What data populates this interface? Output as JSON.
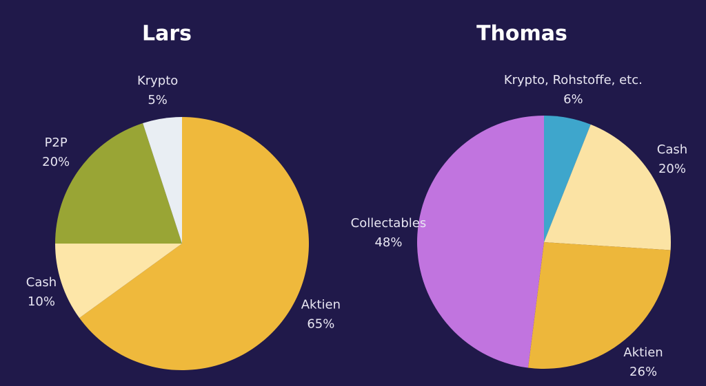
{
  "chart_data": [
    {
      "type": "pie",
      "title": "Lars",
      "categories": [
        "Aktien",
        "Cash",
        "P2P",
        "Krypto"
      ],
      "values": [
        65,
        10,
        20,
        5
      ],
      "value_labels": [
        "65%",
        "10%",
        "20%",
        "5%"
      ],
      "colors": [
        "#efb93c",
        "#fde6a8",
        "#99a535",
        "#e9eef3"
      ]
    },
    {
      "type": "pie",
      "title": "Thomas",
      "categories": [
        "Krypto, Rohstoffe, etc.",
        "Cash",
        "Aktien",
        "Collectables"
      ],
      "values": [
        6,
        20,
        26,
        48
      ],
      "value_labels": [
        "6%",
        "20%",
        "26%",
        "48%"
      ],
      "colors": [
        "#3ea6cc",
        "#fbe3a4",
        "#edb73b",
        "#c174df"
      ]
    }
  ]
}
